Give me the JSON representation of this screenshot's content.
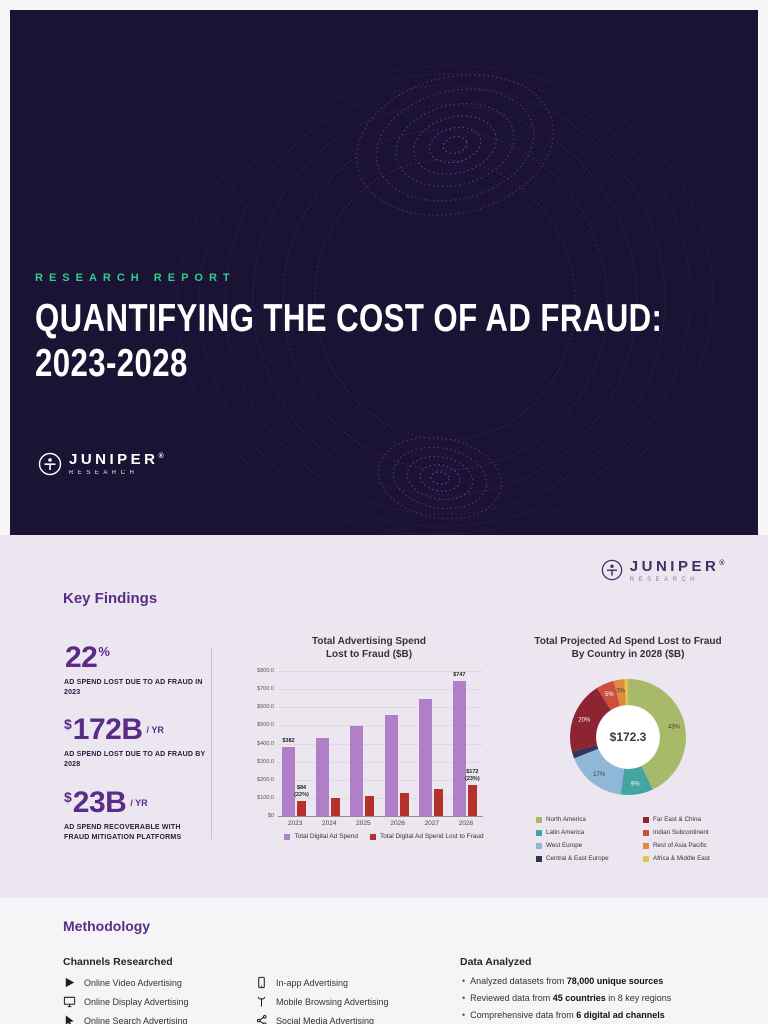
{
  "theme": {
    "banner_bg": "#1b1333",
    "accent_green": "#2ecd8f",
    "purple": "#5b2c87",
    "findings_bg": "#ece6f1",
    "methodology_bg": "#f5f4f6",
    "bar_purple": "#b07fc7",
    "bar_red": "#b5322c"
  },
  "brand": {
    "name": "JUNIPER",
    "reg": "®",
    "sub": "RESEARCH"
  },
  "hero": {
    "eyebrow": "RESEARCH REPORT",
    "title_line1": "QUANTIFYING THE COST OF AD FRAUD:",
    "title_line2": "2023-2028"
  },
  "findings": {
    "heading": "Key Findings",
    "stats": [
      {
        "prefix": "",
        "value": "22",
        "sup": "%",
        "unit": "",
        "caption": "AD SPEND LOST DUE TO AD FRAUD IN 2023"
      },
      {
        "prefix": "$",
        "value": "172B",
        "sup": "",
        "unit": "/ YR",
        "caption": "AD SPEND LOST DUE TO AD FRAUD BY 2028"
      },
      {
        "prefix": "$",
        "value": "23B",
        "sup": "",
        "unit": "/ YR",
        "caption": "AD SPEND RECOVERABLE WITH FRAUD MITIGATION PLATFORMS"
      }
    ]
  },
  "chart_data": [
    {
      "type": "bar",
      "title": "Total Advertising Spend\nLost to Fraud ($B)",
      "categories": [
        "2023",
        "2024",
        "2025",
        "2026",
        "2027",
        "2028"
      ],
      "series": [
        {
          "name": "Total Digital Ad Spend",
          "color": "#b07fc7",
          "values": [
            382,
            432,
            498,
            560,
            645,
            747
          ]
        },
        {
          "name": "Total Digital Ad Spend Lost to Fraud",
          "color": "#b5322c",
          "values": [
            84,
            97,
            110,
            128,
            150,
            172
          ]
        }
      ],
      "ylim": [
        0,
        800
      ],
      "yticks": [
        "$0",
        "$100.0",
        "$200.0",
        "$300.0",
        "$400.0",
        "$500.0",
        "$600.0",
        "$700.0",
        "$800.0"
      ],
      "grid": true,
      "legend_position": "bottom",
      "annotations": [
        {
          "cat": 0,
          "series": 0,
          "lines": [
            "$382"
          ]
        },
        {
          "cat": 0,
          "series": 1,
          "lines": [
            "$84",
            "(22%)"
          ]
        },
        {
          "cat": 5,
          "series": 0,
          "lines": [
            "$747"
          ]
        },
        {
          "cat": 5,
          "series": 1,
          "lines": [
            "$172",
            "(23%)"
          ]
        }
      ]
    },
    {
      "type": "pie",
      "subtype": "donut",
      "title": "Total Projected Ad Spend Lost to Fraud\nBy Country in 2028 ($B)",
      "center_label": "$172.3",
      "legend_position": "bottom",
      "segments": [
        {
          "label": "North America",
          "value": 43,
          "color": "#a9b96a"
        },
        {
          "label": "Latin America",
          "value": 9,
          "color": "#45a5a0"
        },
        {
          "label": "West Europe",
          "value": 17,
          "color": "#8fb7d7"
        },
        {
          "label": "Central & East Europe",
          "value": 2,
          "color": "#37345a"
        },
        {
          "label": "Far East & China",
          "value": 20,
          "color": "#8e2431"
        },
        {
          "label": "Indian Subcontinent",
          "value": 5,
          "color": "#cd4f3e"
        },
        {
          "label": "Rest of Asia Pacific",
          "value": 3,
          "color": "#df8a3d"
        },
        {
          "label": "Africa & Middle East",
          "value": 1,
          "color": "#e4c44d"
        }
      ]
    }
  ],
  "methodology": {
    "heading": "Methodology",
    "channels_heading": "Channels Researched",
    "channels_col1": [
      "Online Video Advertising",
      "Online Display Advertising",
      "Online Search Advertising"
    ],
    "channels_col2": [
      "In-app Advertising",
      "Mobile Browsing Advertising",
      "Social Media Advertising"
    ],
    "data_heading": "Data Analyzed",
    "bullets": [
      {
        "pre": "Analyzed datasets from ",
        "bold": "78,000 unique sources",
        "post": ""
      },
      {
        "pre": "Reviewed data from ",
        "bold": "45 countries",
        "post": " in 8 key regions"
      },
      {
        "pre": "Comprehensive data from ",
        "bold": "6 digital ad channels",
        "post": ""
      }
    ]
  }
}
